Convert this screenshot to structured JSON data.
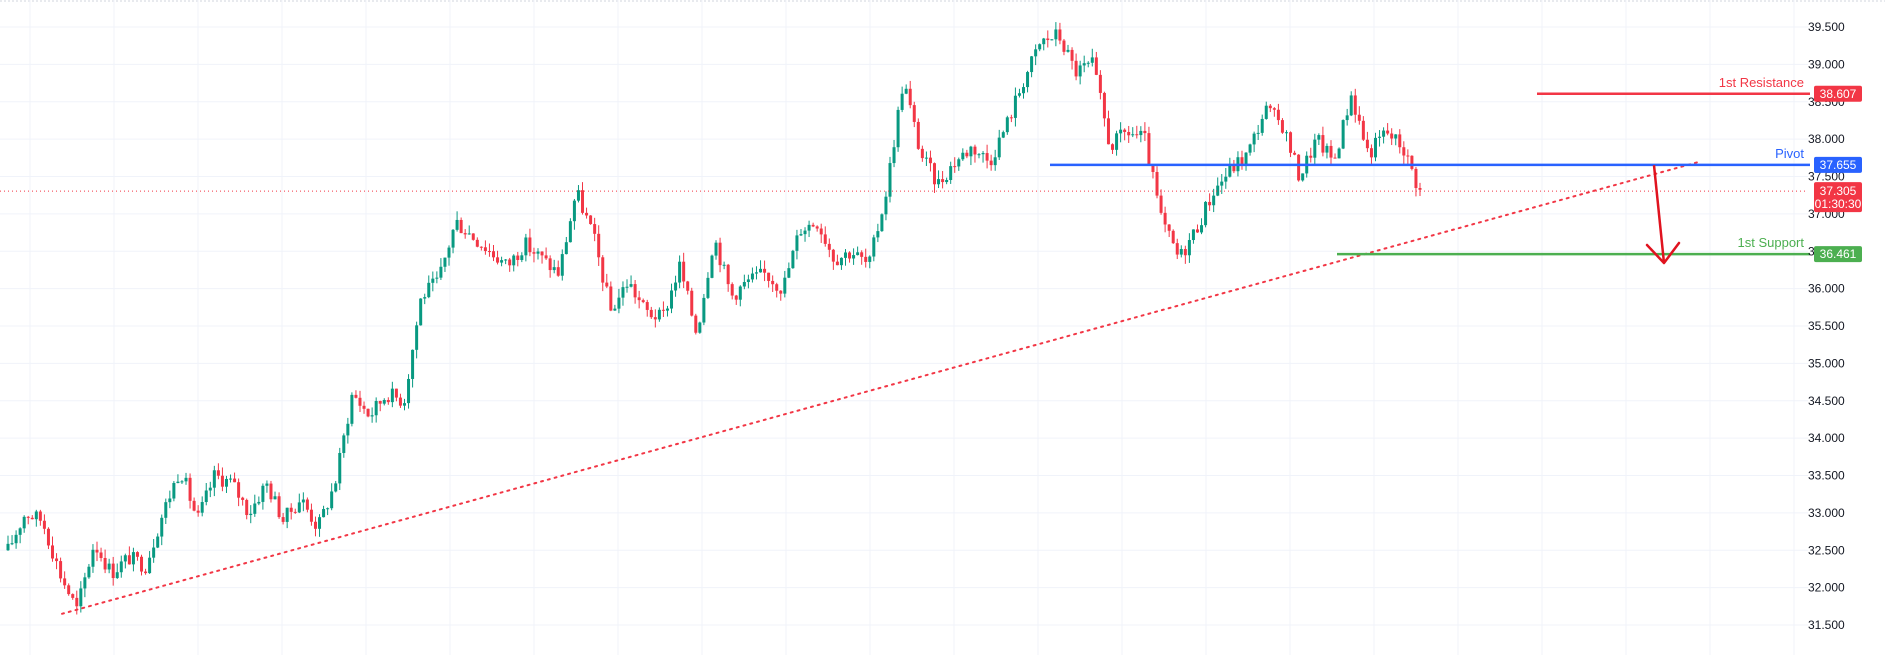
{
  "chart_data": {
    "type": "candlestick",
    "title": "",
    "xlabel": "",
    "ylabel": "",
    "ylim": [
      31.3,
      39.75
    ],
    "y_ticks": [
      "31.500",
      "32.000",
      "32.500",
      "33.000",
      "33.500",
      "34.000",
      "34.500",
      "35.000",
      "35.500",
      "36.000",
      "36.500",
      "37.000",
      "37.500",
      "38.000",
      "38.500",
      "39.000",
      "39.500"
    ],
    "grid": true,
    "colors": {
      "up": "#089981",
      "down": "#f23645",
      "resistance": "#f23645",
      "pivot": "#2962ff",
      "support": "#4caf50",
      "trend": "#f23645",
      "arrow": "#e0131f",
      "axis_text": "#131722",
      "grid": "#f0f3fa"
    },
    "path": [
      32.5,
      33.0,
      32.9,
      32.2,
      31.7,
      32.6,
      32.2,
      32.4,
      32.3,
      33.0,
      33.6,
      32.9,
      33.5,
      33.4,
      33.0,
      33.4,
      32.9,
      33.2,
      32.8,
      33.4,
      34.6,
      34.3,
      34.6,
      34.5,
      35.9,
      36.1,
      36.9,
      36.7,
      36.5,
      36.3,
      36.6,
      36.4,
      36.2,
      37.3,
      36.7,
      35.7,
      36.1,
      35.7,
      35.6,
      36.3,
      35.4,
      36.7,
      35.9,
      36.1,
      36.2,
      36.0,
      36.8,
      36.9,
      36.4,
      36.5,
      36.3,
      37.3,
      38.8,
      37.8,
      37.4,
      37.7,
      37.9,
      37.7,
      38.2,
      38.8,
      39.3,
      39.4,
      38.9,
      39.0,
      37.9,
      38.1,
      38.0,
      36.9,
      36.4,
      36.8,
      37.3,
      37.6,
      37.8,
      38.4,
      38.2,
      37.5,
      38.0,
      37.7,
      38.6,
      37.8,
      38.1,
      37.9,
      37.3
    ],
    "levels": [
      {
        "label": "1st Resistance",
        "value": 38.607,
        "price": "38.607"
      },
      {
        "label": "Pivot",
        "value": 37.655,
        "price": "37.655"
      },
      {
        "label": "1st Support",
        "value": 36.461,
        "price": "36.461"
      }
    ],
    "last_price": {
      "value": 37.305,
      "price": "37.305",
      "countdown": "01:30:30"
    },
    "trendline": {
      "from": 31.65,
      "to": 37.7
    },
    "projection": {
      "from": 37.65,
      "to": 36.45
    }
  }
}
